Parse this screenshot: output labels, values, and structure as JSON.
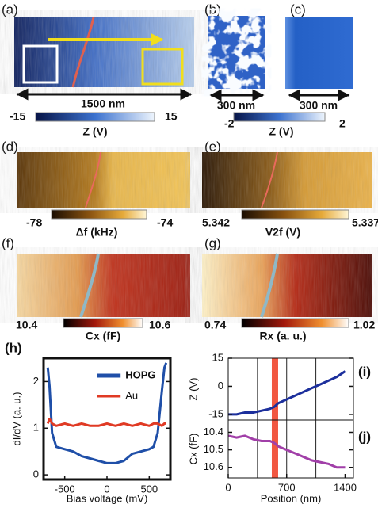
{
  "figure": {
    "panel_labels": [
      "(a)",
      "(b)",
      "(c)",
      "(d)",
      "(e)",
      "(f)",
      "(g)"
    ],
    "scalebars": [
      "1500 nm",
      "300 nm",
      "300 nm"
    ],
    "colorbars": [
      {
        "left": -15,
        "right": 15,
        "label": "Z (V)"
      },
      {
        "left": -2,
        "right": 2,
        "label": "Z (V)"
      },
      {
        "left": -78,
        "right": -74,
        "label": "Δf (kHz)"
      },
      {
        "left": 5.342,
        "right": 5.337,
        "label": "V2f (V)"
      },
      {
        "left": 10.4,
        "right": 10.6,
        "label": "Cx (fF)"
      },
      {
        "left": 0.74,
        "right": 1.02,
        "label": "Rx (a. u.)"
      }
    ]
  },
  "chart_data": [
    {
      "type": "line",
      "panel_label": "(h)",
      "x_label": "Bias voltage (mV)",
      "y_label": "dI/dV (a. u.)",
      "x": [
        -700,
        -680,
        -650,
        -600,
        -500,
        -400,
        -300,
        -200,
        -100,
        0,
        100,
        200,
        300,
        400,
        500,
        550,
        600,
        650,
        680,
        700
      ],
      "series": [
        {
          "name": "HOPG",
          "color": "#1f4fa8",
          "values": [
            2.3,
            1.9,
            0.9,
            0.6,
            0.55,
            0.5,
            0.4,
            0.35,
            0.3,
            0.25,
            0.25,
            0.3,
            0.45,
            0.5,
            0.55,
            0.6,
            0.9,
            1.8,
            2.3,
            2.4
          ]
        },
        {
          "name": "Au",
          "color": "#e03a24",
          "values": [
            1.1,
            1.2,
            1.1,
            1.05,
            1.1,
            1.05,
            1.1,
            1.05,
            1.05,
            1.1,
            1.05,
            1.1,
            1.05,
            1.1,
            1.05,
            1.1,
            1.1,
            1.05,
            1.1,
            1.1
          ]
        }
      ],
      "xlim": [
        -750,
        750
      ],
      "xticks": [
        -500,
        0,
        500
      ],
      "ylim": [
        -0.1,
        2.5
      ],
      "yticks": [
        0,
        1,
        2
      ],
      "legend": "upper right"
    },
    {
      "type": "line",
      "panel_label": "(i)",
      "y_label": "Z (V)",
      "x": [
        0,
        100,
        200,
        300,
        400,
        500,
        550,
        600,
        700,
        800,
        900,
        1000,
        1100,
        1200,
        1300,
        1400
      ],
      "series": [
        {
          "color": "#1c2f9c",
          "values": [
            -15,
            -15,
            -14,
            -14,
            -13,
            -12,
            -11,
            -9,
            -7,
            -5,
            -3,
            -1,
            1,
            3,
            5,
            8
          ]
        }
      ],
      "xlim": [
        0,
        1500
      ],
      "ylim": [
        -18,
        15
      ],
      "yticks": [
        -15,
        0,
        15
      ],
      "highlight_x": 560,
      "vlines": [
        350,
        700,
        1050
      ]
    },
    {
      "type": "line",
      "panel_label": "(j)",
      "x_label": "Position (nm)",
      "y_label": "Cx (fF)",
      "x": [
        0,
        100,
        200,
        300,
        400,
        500,
        550,
        600,
        700,
        800,
        900,
        1000,
        1100,
        1200,
        1300,
        1400
      ],
      "series": [
        {
          "color": "#a13fa8",
          "values": [
            10.42,
            10.43,
            10.42,
            10.44,
            10.45,
            10.45,
            10.46,
            10.48,
            10.5,
            10.52,
            10.54,
            10.56,
            10.57,
            10.58,
            10.6,
            10.6
          ]
        }
      ],
      "xlim": [
        0,
        1500
      ],
      "xticks": [
        0,
        700,
        1400
      ],
      "ylim": [
        10.66,
        10.33
      ],
      "yticks": [
        10.4,
        10.5,
        10.6
      ],
      "highlight_x": 560,
      "vlines": [
        350,
        700,
        1050
      ]
    }
  ]
}
